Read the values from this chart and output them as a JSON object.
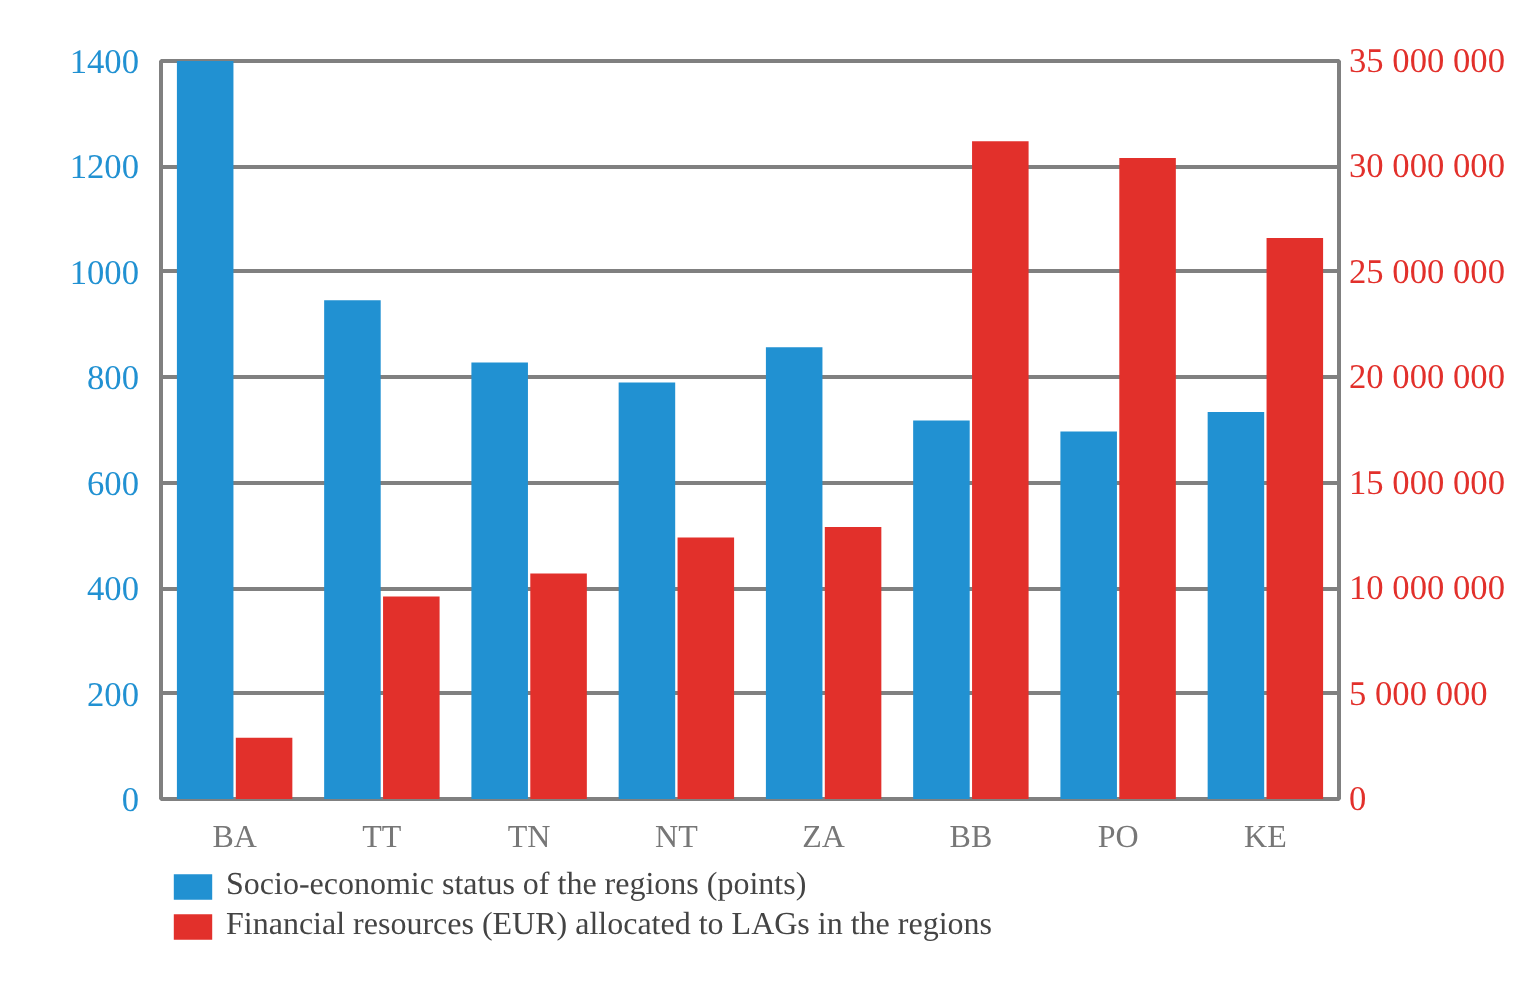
{
  "chart_data": {
    "type": "bar",
    "categories": [
      "BA",
      "TT",
      "TN",
      "NT",
      "ZA",
      "BB",
      "PO",
      "KE"
    ],
    "series": [
      {
        "name": "Socio-economic status of the regions (points)",
        "color": "#2191d2",
        "values": [
          1400,
          946,
          828,
          790,
          857,
          718,
          697,
          734
        ]
      },
      {
        "name": "Financial resources (EUR) allocated to LAGs in the regions",
        "color": "#e2302b",
        "axis": "y2",
        "values": [
          2900000,
          9600000,
          10700000,
          12400000,
          12900000,
          31200000,
          30400000,
          26600000
        ]
      }
    ],
    "ylim": [
      0,
      1400
    ],
    "yticks": [
      0,
      200,
      400,
      600,
      800,
      1000,
      1200,
      1400
    ],
    "y2lim": [
      0,
      35000000
    ],
    "y2ticks": [
      {
        "value": 0,
        "label": "0"
      },
      {
        "value": 5000000,
        "label": "5 000 000"
      },
      {
        "value": 10000000,
        "label": "10 000 000"
      },
      {
        "value": 15000000,
        "label": "15 000 000"
      },
      {
        "value": 20000000,
        "label": "20 000 000"
      },
      {
        "value": 25000000,
        "label": "25 000 000"
      },
      {
        "value": 30000000,
        "label": "30 000 000"
      },
      {
        "value": 35000000,
        "label": "35 000 000"
      }
    ],
    "grid": "y",
    "legend": "bottom"
  }
}
